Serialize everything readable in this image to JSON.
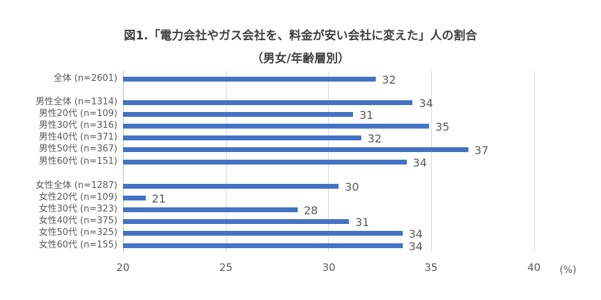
{
  "chart_data": {
    "type": "bar",
    "orientation": "horizontal",
    "title": "図1.「電力会社やガス会社を、料金が安い会社に変えた」人の割合",
    "subtitle": "（男女/年齢層別）",
    "xlabel": "(%)",
    "ylabel": "",
    "xlim": [
      20,
      40
    ],
    "xticks": [
      "20",
      "25",
      "30",
      "35",
      "40"
    ],
    "grid": true,
    "legend": null,
    "categories": [
      "全体 (n=2601)",
      "男性全体 (n=1314)",
      "男性20代  (n=109)",
      "男性30代 (n=316)",
      "男性40代 (n=371)",
      "男性50代 (n=367)",
      "男性60代 (n=151)",
      "女性全体 (n=1287)",
      "女性20代 (n=109)",
      "女性30代 (n=323)",
      "女性40代 (n=375)",
      "女性50代 (n=325)",
      "女性60代 (n=155)"
    ],
    "values": [
      32.3,
      34.1,
      31.2,
      34.9,
      31.6,
      36.8,
      33.8,
      30.5,
      21.1,
      28.5,
      31.0,
      33.6,
      33.6
    ],
    "labels": [
      "32",
      "34",
      "31",
      "35",
      "32",
      "37",
      "34",
      "30",
      "21",
      "28",
      "31",
      "34",
      "34"
    ],
    "color": "#4472c4"
  }
}
